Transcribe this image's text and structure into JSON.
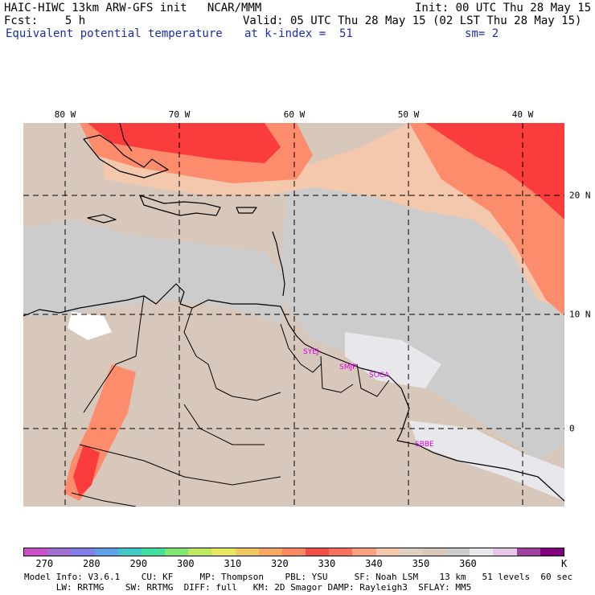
{
  "header": {
    "line1_left": "HAIC-HIWC 13km ARW-GFS init   NCAR/MMM",
    "line1_right": "Init: 00 UTC Thu 28 May 15",
    "line2_left": "Fcst:    5 h",
    "line2_right": "Valid: 05 UTC Thu 28 May 15 (02 LST Thu 28 May 15)",
    "field": "Equivalent potential temperature",
    "level": "at k-index =  51",
    "smoothing": "sm= 2"
  },
  "map": {
    "lon_labels": [
      "80 W",
      "70 W",
      "60 W",
      "50 W",
      "40 W"
    ],
    "lat_labels": [
      "20 N",
      "10 N",
      "0"
    ],
    "stations": [
      "SYEJ",
      "SMJP",
      "SOCA",
      "SBBE"
    ],
    "colors": {
      "red": "#fa3c3c",
      "salmon": "#fc8c6c",
      "peach": "#f4c8ac",
      "tan": "#d8c8bc",
      "gray": "#cccccc",
      "lightgray": "#e8e8ec",
      "white": "#ffffff"
    }
  },
  "colorbar": {
    "colors": [
      "#c850c8",
      "#a070d0",
      "#8080e8",
      "#60a0e8",
      "#40c8c8",
      "#40e0a0",
      "#80e870",
      "#c0e860",
      "#e8e860",
      "#f0c860",
      "#f8a860",
      "#f88860",
      "#f05048",
      "#f87060",
      "#fca080",
      "#f4c8ac",
      "#e0d0c4",
      "#d8c8bc",
      "#cccccc",
      "#e8e8ec",
      "#e8c8e8",
      "#a040a0",
      "#800080"
    ],
    "ticks": [
      "270",
      "280",
      "290",
      "300",
      "310",
      "320",
      "330",
      "340",
      "350",
      "360"
    ],
    "unit": "K"
  },
  "footer": {
    "line1": "Model Info: V3.6.1    CU: KF     MP: Thompson    PBL: YSU     SF: Noah LSM    13 km   51 levels  60 sec",
    "line2": "      LW: RRTMG    SW: RRTMG  DIFF: full   KM: 2D Smagor DAMP: Rayleigh3  SFLAY: MM5"
  }
}
